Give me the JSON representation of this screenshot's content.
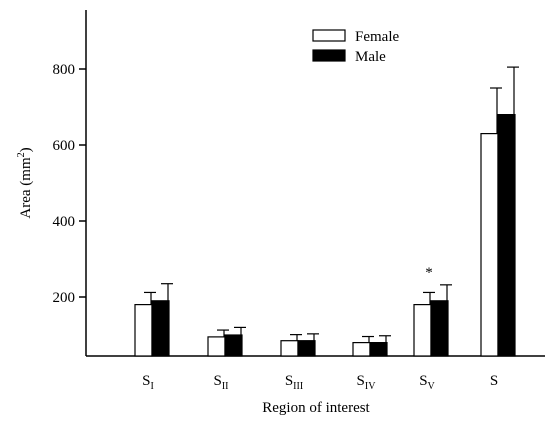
{
  "chart_data": {
    "type": "bar",
    "categories": [
      {
        "main": "S",
        "sub": "I"
      },
      {
        "main": "S",
        "sub": "II"
      },
      {
        "main": "S",
        "sub": "III"
      },
      {
        "main": "S",
        "sub": "IV"
      },
      {
        "main": "S",
        "sub": "V"
      },
      {
        "main": "S",
        "sub": ""
      }
    ],
    "series": [
      {
        "name": "Female",
        "color": "#ffffff",
        "values": [
          180,
          95,
          85,
          80,
          180,
          630
        ],
        "errors": [
          32,
          18,
          16,
          16,
          32,
          120
        ]
      },
      {
        "name": "Male",
        "color": "#000000",
        "values": [
          190,
          100,
          85,
          80,
          190,
          680
        ],
        "errors": [
          45,
          20,
          18,
          18,
          42,
          125
        ]
      }
    ],
    "ylabel": "Area (mm",
    "ylabel_sup": "2",
    "ylabel_close": ")",
    "xlabel": "Region of interest",
    "yticks": [
      200,
      400,
      600,
      800
    ],
    "ylim": [
      0,
      900
    ],
    "annotations": [
      {
        "text": "*",
        "category_index": 4
      }
    ],
    "legend_position": "top-center"
  }
}
